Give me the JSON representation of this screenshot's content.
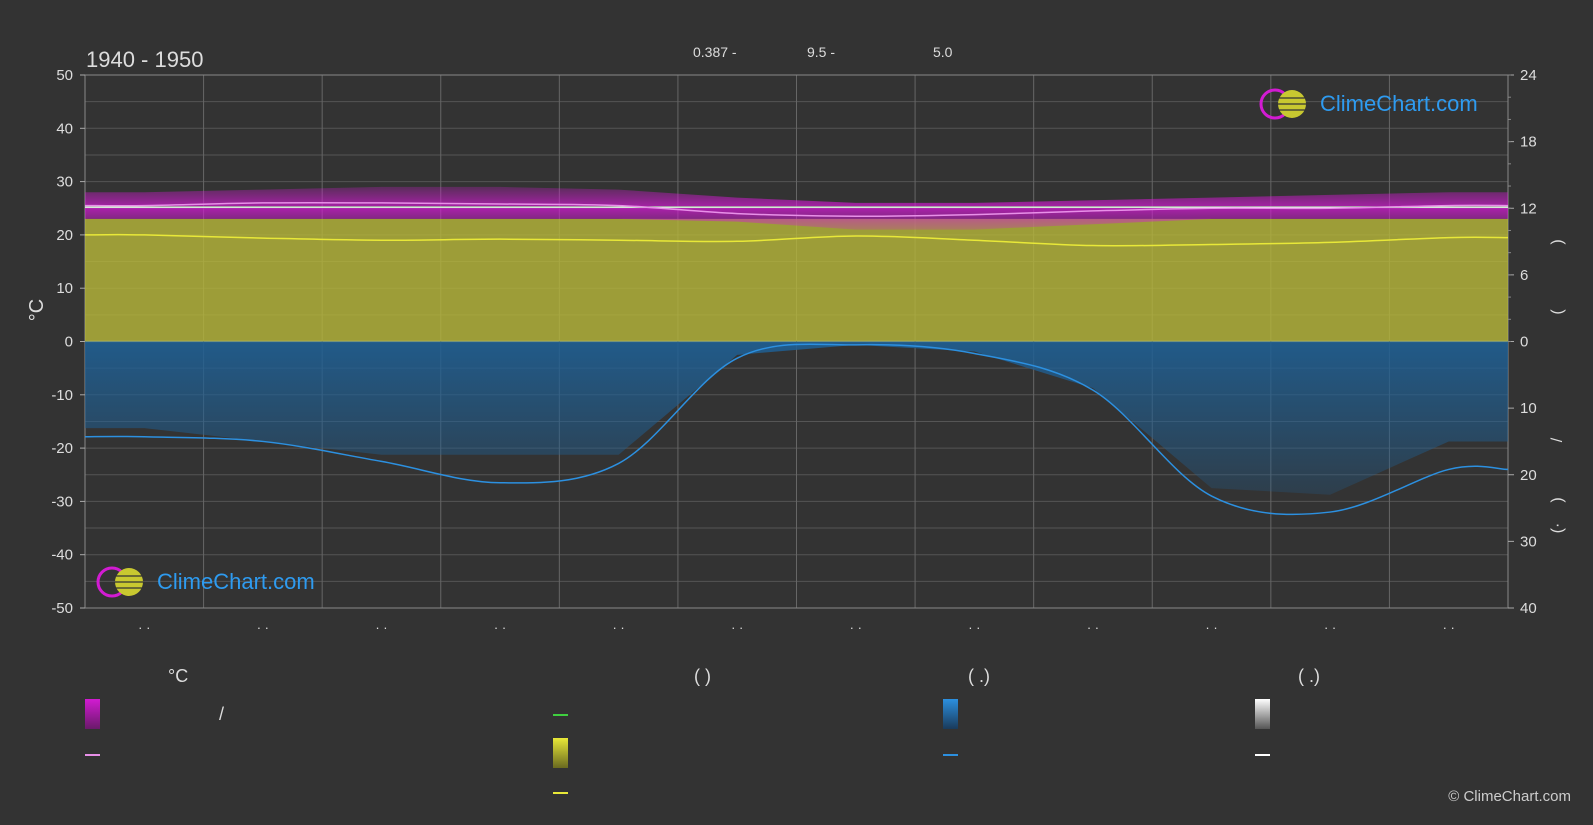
{
  "title": "1940 - 1950",
  "top_values": [
    "0.387 -",
    "9.5 -",
    "5.0"
  ],
  "logo_text": "ClimeChart.com",
  "credit": "© ClimeChart.com",
  "colors": {
    "background": "#333333",
    "sun_fill": "#b8b83a",
    "precip_fill": "#1f5f93",
    "temp_band": "#d21bd2",
    "sunshine_line": "#e8e838",
    "precip_line": "#2c90e0",
    "daylight_line": "#3fcf3f",
    "mean_temp_line": "#e890e8",
    "white_line": "#ffffff"
  },
  "chart_data": {
    "type": "area",
    "title": "1940 - 1950",
    "ylabel_left": "°C",
    "ylim_left": [
      -50,
      50
    ],
    "left_ticks": [
      "50",
      "40",
      "30",
      "20",
      "10",
      "0",
      "-10",
      "-20",
      "-30",
      "-40",
      "-50"
    ],
    "right_ticks_top": [
      "24",
      "18",
      "12",
      "6",
      "0"
    ],
    "right_ticks_bottom": [
      "10",
      "20",
      "30",
      "40"
    ],
    "right_label_glyphs": [
      ")",
      "(",
      "/",
      ")",
      "(·"
    ],
    "x_tick_labels": [
      "· ·",
      "· ·",
      "· ·",
      "· ·",
      "· ·",
      "· ·",
      "· ·",
      "· ·",
      "· ·",
      "· ·",
      "· ·",
      "· ·"
    ],
    "months": 12,
    "grid": true,
    "series": [
      {
        "key": "temp_max",
        "values": [
          28.0,
          28.5,
          29.0,
          29.0,
          28.5,
          27.0,
          26.0,
          26.0,
          26.5,
          27.0,
          27.5,
          28.0
        ]
      },
      {
        "key": "temp_min",
        "values": [
          23.0,
          23.0,
          23.0,
          23.0,
          23.0,
          22.5,
          21.0,
          21.0,
          22.0,
          23.0,
          23.0,
          23.0
        ]
      },
      {
        "key": "mean_temp",
        "values": [
          25.5,
          26.0,
          26.0,
          25.8,
          25.5,
          24.0,
          23.5,
          23.8,
          24.5,
          25.0,
          25.0,
          25.5
        ]
      },
      {
        "key": "daylight_hours",
        "values": [
          12.1,
          12.1,
          12.1,
          12.1,
          12.1,
          12.1,
          12.1,
          12.1,
          12.1,
          12.1,
          12.1,
          12.1
        ]
      },
      {
        "key": "white_line",
        "values": [
          25.2,
          25.2,
          25.2,
          25.2,
          25.2,
          25.2,
          25.2,
          25.2,
          25.2,
          25.2,
          25.2,
          25.2
        ]
      },
      {
        "key": "sunshine_line",
        "values": [
          20.0,
          19.4,
          19.0,
          19.2,
          19.0,
          18.8,
          19.8,
          19.0,
          18.0,
          18.2,
          18.6,
          19.5
        ]
      },
      {
        "key": "sunshine_top",
        "values": [
          23,
          23,
          23,
          23,
          23,
          23,
          23,
          23,
          23,
          23,
          23,
          23
        ]
      },
      {
        "key": "precip_line",
        "values": [
          14.3,
          15.0,
          18.0,
          21.2,
          18.3,
          2.5,
          0.5,
          1.8,
          7.3,
          23.2,
          25.6,
          19.2
        ]
      },
      {
        "key": "precip_fill",
        "values": [
          13,
          15,
          17,
          17,
          17,
          2,
          0.5,
          1.5,
          7,
          22,
          23,
          15
        ]
      }
    ]
  },
  "legend": {
    "headers": [
      "°C",
      "(          )",
      "(   .)",
      "(   .)"
    ],
    "col1": {
      "row1_text": "/",
      "row2_text": ""
    },
    "col2": {
      "row1_text": "",
      "row2_text": "",
      "row3_text": ""
    },
    "col3": {
      "row1_text": "",
      "row2_text": ""
    },
    "col4": {
      "row1_text": "",
      "row2_text": ""
    }
  }
}
